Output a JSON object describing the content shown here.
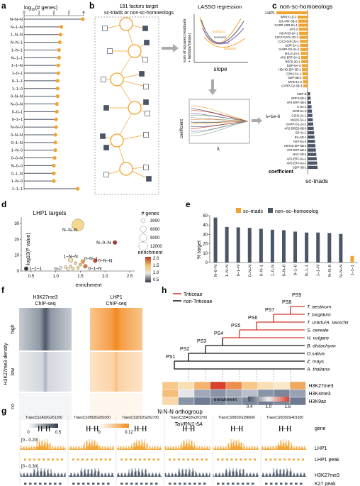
{
  "panels": {
    "a": "a",
    "b": "b",
    "c": "c",
    "d": "d",
    "e": "e",
    "f": "f",
    "g": "g",
    "h": "h"
  },
  "panel_a": {
    "title": "log10(# genes)",
    "title_main": "log",
    "title_sub": "10",
    "title_rest": "(# genes)",
    "ticks": [
      "0",
      "1",
      "2",
      "3",
      "4"
    ],
    "rows": [
      {
        "label": "N–N–N",
        "value": 3.95
      },
      {
        "label": "N–1–N",
        "value": 2.5
      },
      {
        "label": "1–N–N",
        "value": 2.45
      },
      {
        "label": "N–N–1",
        "value": 2.4
      },
      {
        "label": "1–N–1",
        "value": 2.35
      },
      {
        "label": "N–1–1",
        "value": 2.35
      },
      {
        "label": "1–1–N",
        "value": 2.3
      },
      {
        "label": "1–0–1",
        "value": 2.3
      },
      {
        "label": "0–1–1",
        "value": 2.25
      },
      {
        "label": "1–1–0",
        "value": 2.25
      },
      {
        "label": "0–N–N",
        "value": 2.25
      },
      {
        "label": "N–0–N",
        "value": 2.2
      },
      {
        "label": "0–0–1",
        "value": 2.2
      },
      {
        "label": "0–1–1",
        "value": 2.15
      },
      {
        "label": "N–N–0",
        "value": 2.15
      },
      {
        "label": "0–N–N",
        "value": 2.1
      },
      {
        "label": "0–1–N",
        "value": 2.1
      },
      {
        "label": "1–N–0",
        "value": 2.1
      },
      {
        "label": "0–0–N",
        "value": 2.05
      },
      {
        "label": "N–0–0",
        "value": 2.0
      },
      {
        "label": "0–1–N",
        "value": 2.0
      },
      {
        "label": "1–N–0",
        "value": 2.0
      },
      {
        "label": "1–1–1",
        "value": 3.6
      }
    ]
  },
  "panel_b": {
    "title_line1": "191 factors target",
    "title_line2": "sc-triads or non-sc-homoeologs",
    "lasso_title": "LASSO regression",
    "ylab": "sum of squared residuals",
    "ylab2": "+ lambda*|slope|",
    "xlab": "slope",
    "lam1": "lambda1",
    "lam2": "lambda2",
    "lam3": "lambda3",
    "lam4": "lambda4",
    "coef_label": "coefficient",
    "lambda_x": "λ",
    "lambda_val": "λ=1e-6"
  },
  "panel_c": {
    "title": "non-sc-homoeologs",
    "bottom": "sc-triads",
    "coef": "coefficient",
    "top_factor": "LHP1",
    "top_value": 1.0,
    "factors_top": [
      {
        "name": "WRKY-1D-2",
        "value": 0.32
      },
      {
        "name": "B3-ARF-3B-2",
        "value": 0.3
      },
      {
        "name": "GARP-ARR-6A-1",
        "value": 0.29
      },
      {
        "name": "AP2-2",
        "value": 0.28
      },
      {
        "name": "HB-PHD-6A-1",
        "value": 0.27
      },
      {
        "name": "C2C2-GATA-1D-1",
        "value": 0.26
      },
      {
        "name": "C2C2-Dof-1D-1",
        "value": 0.25
      },
      {
        "name": "bZIP-2A-1",
        "value": 0.24
      },
      {
        "name": "GARP-G2-4A-1",
        "value": 0.23
      },
      {
        "name": "bHLH-1A-1",
        "value": 0.22
      },
      {
        "name": "AP2-ERF-6A-2",
        "value": 0.21
      },
      {
        "name": "REF6-3D-1",
        "value": 0.2
      },
      {
        "name": "bZIP-6A-3",
        "value": 0.19
      },
      {
        "name": "HB-HD-ZIP-3D-1",
        "value": 0.18
      },
      {
        "name": "C2H2-3A-1",
        "value": 0.17
      },
      {
        "name": "bZIP-5B-2",
        "value": 0.16
      },
      {
        "name": "MYB-4A-2",
        "value": 0.15
      },
      {
        "name": "GARP-G2-3B-3",
        "value": 0.14
      }
    ],
    "factors_bottom": [
      {
        "name": "bZIP-B",
        "value": 0.12
      },
      {
        "name": "GRF4-6D-1",
        "value": 0.14
      },
      {
        "name": "AP2-ERF-4B-2",
        "value": 0.16
      },
      {
        "name": "C-5A-1",
        "value": 0.18
      },
      {
        "name": "MYB-5A-3",
        "value": 0.2
      },
      {
        "name": "C2H2-2A-1",
        "value": 0.22
      },
      {
        "name": "MADS-5A-1",
        "value": 0.24
      },
      {
        "name": "GARP-G2-2A-1",
        "value": 0.26
      },
      {
        "name": "AP2-DREB-6B-3",
        "value": 0.28
      },
      {
        "name": "B3-4A-1",
        "value": 0.3
      },
      {
        "name": "EIL-6D-1",
        "value": 0.32
      },
      {
        "name": "HSF-5A-1",
        "value": 0.34
      },
      {
        "name": "HB-HD-ZIP-6B-1",
        "value": 0.36
      },
      {
        "name": "AP2-ERF-5B-1",
        "value": 0.38
      },
      {
        "name": "NAC-3D-1",
        "value": 0.4
      },
      {
        "name": "AP2-ERF-6A-1",
        "value": 0.42
      },
      {
        "name": "AP2-ERF-6A-1",
        "value": 0.44
      },
      {
        "name": "bZIP-3B-1",
        "value": 0.46
      }
    ]
  },
  "panel_d": {
    "title": "LHP1 targets",
    "xlabel": "enrichment",
    "ylabel": "-log10(P value)",
    "xticks": [
      "0.5",
      "1.0",
      "1.5",
      "2.0",
      "2.5"
    ],
    "yticks": [
      "0",
      "10",
      "20",
      "30"
    ],
    "size_legend_title": "# genes",
    "size_values": [
      "3000",
      "6000",
      "9000",
      "12000"
    ],
    "color_legend_title": "enrichment",
    "color_ticks": [
      "2.0",
      "1.5",
      "1.0",
      "0.5"
    ],
    "labels": {
      "nnn": "N–N–N",
      "n0n": "N–0–N",
      "1nn": "1–N–N",
      "0n1": "0–N–1",
      "0nn": "0–N–N",
      "01n": "0–1–N",
      "111": "1–1–1"
    },
    "points": [
      {
        "x": 1.45,
        "y": 29,
        "r": 12,
        "c": "#f5d98e"
      },
      {
        "x": 2.2,
        "y": 18,
        "r": 4,
        "c": "#b5342a"
      },
      {
        "x": 1.3,
        "y": 7,
        "r": 5,
        "c": "#f4e3ad"
      },
      {
        "x": 1.55,
        "y": 6,
        "r": 4,
        "c": "#e9a445"
      },
      {
        "x": 1.8,
        "y": 6.5,
        "r": 4,
        "c": "#c9482c"
      },
      {
        "x": 1.6,
        "y": 3,
        "r": 4,
        "c": "#e07a33"
      },
      {
        "x": 0.4,
        "y": 1.5,
        "r": 4,
        "c": "#2d3541"
      },
      {
        "x": 1.0,
        "y": 1.5,
        "r": 3,
        "c": "#c5c7cb"
      },
      {
        "x": 1.1,
        "y": 2.0,
        "r": 3,
        "c": "#e8e3d8"
      },
      {
        "x": 1.2,
        "y": 2.5,
        "r": 3,
        "c": "#f1e4c3"
      },
      {
        "x": 1.3,
        "y": 3.0,
        "r": 3,
        "c": "#f1dc9e"
      },
      {
        "x": 1.35,
        "y": 1.5,
        "r": 3,
        "c": "#f1dc9e"
      },
      {
        "x": 1.45,
        "y": 2.0,
        "r": 3,
        "c": "#efd38b"
      },
      {
        "x": 1.5,
        "y": 4.0,
        "r": 3,
        "c": "#ecc26b"
      },
      {
        "x": 1.25,
        "y": 1.2,
        "r": 3,
        "c": "#f4e9cc"
      },
      {
        "x": 1.05,
        "y": 0.8,
        "r": 3,
        "c": "#dcdcdc"
      },
      {
        "x": 1.4,
        "y": 5,
        "r": 3,
        "c": "#f2d58c"
      }
    ]
  },
  "panel_e": {
    "legend1": "sc–triads",
    "legend2": "non–sc–homoeolog",
    "ylabel": "% target",
    "yticks": [
      "0",
      "10",
      "20",
      "30",
      "40",
      "50"
    ],
    "ymax": 50,
    "bars": [
      {
        "label": "N–0–N",
        "value": 48,
        "type": "non"
      },
      {
        "label": "1–N–N",
        "value": 38,
        "type": "non"
      },
      {
        "label": "0–1–N",
        "value": 37.5,
        "type": "non"
      },
      {
        "label": "0–N–N",
        "value": 37,
        "type": "non"
      },
      {
        "label": "0–N–1",
        "value": 36,
        "type": "non"
      },
      {
        "label": "1–0–N",
        "value": 35,
        "type": "non"
      },
      {
        "label": "0–N–0",
        "value": 34.5,
        "type": "non"
      },
      {
        "label": "0–1–0",
        "value": 33,
        "type": "non"
      },
      {
        "label": "N–1–1",
        "value": 32,
        "type": "non"
      },
      {
        "label": "1–1–N",
        "value": 32,
        "type": "non"
      },
      {
        "label": "N–N–0",
        "value": 31.5,
        "type": "non"
      },
      {
        "label": "N–N–N",
        "value": 30.5,
        "type": "non"
      },
      {
        "label": "1–1–1",
        "value": 7,
        "type": "sc"
      }
    ]
  },
  "panel_f": {
    "col1_line1": "H3K27me3",
    "col1_line2": "ChIP-seq",
    "col2_line1": "LHP1",
    "col2_line2": "ChIP-seq",
    "row_high": "high",
    "row_low": "low",
    "row_no": "no",
    "ylabel": "H3K27me3 density",
    "scale1_min": "0",
    "scale1_max": "0.5",
    "scale2_min": "0",
    "scale2_max": "0.12"
  },
  "panel_h": {
    "legend_triticeae": "Triticeae",
    "legend_non": "non-Triticeae",
    "nodes": [
      "PS1",
      "PS2",
      "PS3",
      "PS4",
      "PS5",
      "PS6",
      "PS7",
      "PS8",
      "PS9"
    ],
    "species": [
      "T. aestivum",
      "T. turgidum",
      "T. urartu/A. tauschii",
      "S. cereale",
      "H. vulgare",
      "B. distachyon",
      "O.sativa",
      "Z. mays",
      "A. thaliana"
    ],
    "marks": [
      "H3K27me3",
      "H3K4me3",
      "H3K9ac"
    ],
    "heat": [
      [
        "#f6c98a",
        "#f9dfb6",
        "#f4b46c",
        "#d8412d",
        "#ee8e4e",
        "#f6c98a",
        "#f9dfb6",
        "#fbe8cc",
        "#f1a860"
      ],
      [
        "#f5bd7a",
        "#e6e6ea",
        "#a1a9b8",
        "#8994a6",
        "#a1a9b8",
        "#b9bfcb",
        "#8994a6",
        "#7c879b",
        "#98a2b3"
      ],
      [
        "#f9d8a9",
        "#8994a6",
        "#6f7b90",
        "#7c879b",
        "#8994a6",
        "#7c879b",
        "#6f7b90",
        "#7c879b",
        "#6f7b90"
      ]
    ],
    "enrichment_label": "enrichment",
    "scale_ticks": [
      "0.4",
      "1.0",
      "1.6"
    ]
  },
  "panel_g": {
    "title": "N-N-N orthogroup",
    "genes": [
      "TraesCS2A02G261200",
      "TraesCS2B02G281000",
      "TraesCS2D02G262700",
      "TraesCS5A02G391700",
      "TraesCS5B02G396600",
      "TraesCS5D02G401500"
    ],
    "highlight": "TaVRN1-5A",
    "tracks": [
      "gene",
      "LHP1",
      "LHP1 peak",
      "H3K27me3",
      "K27 peak"
    ],
    "range1": "[0 - 0.20]",
    "range2": "[0 - 0.30]"
  },
  "colors": {
    "orange": "#f2a22e",
    "slate": "#4a5566",
    "red": "#d1332b"
  }
}
